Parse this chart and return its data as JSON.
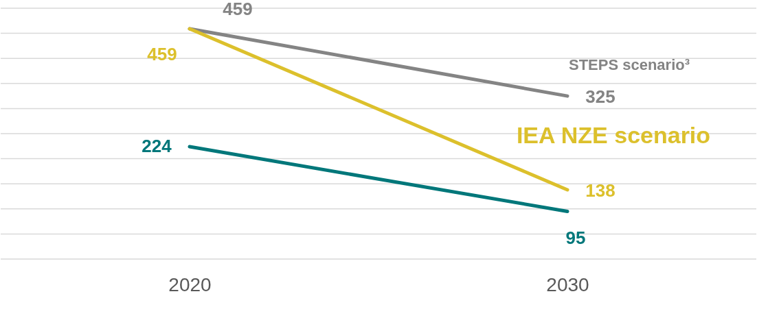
{
  "chart_data": {
    "type": "line",
    "categories": [
      "2020",
      "2030"
    ],
    "series": [
      {
        "name": "STEPS scenario³",
        "color": "#848484",
        "values": [
          459,
          325
        ]
      },
      {
        "name": "IEA NZE scenario",
        "color": "#dcc02c",
        "values": [
          459,
          138
        ]
      },
      {
        "color": "#00777a",
        "values": [
          224,
          95
        ]
      }
    ],
    "ylim": [
      0,
      500
    ],
    "yticks": [
      {
        "value": 0,
        "label": null
      },
      {
        "value": 50,
        "label": null
      },
      {
        "value": 100,
        "label": null
      },
      {
        "value": 150,
        "label": null
      },
      {
        "value": 200,
        "label": null
      },
      {
        "value": 250,
        "label": null
      },
      {
        "value": 300,
        "label": null
      },
      {
        "value": 350,
        "label": null
      },
      {
        "value": 400,
        "label": null
      },
      {
        "value": 450,
        "label": null
      },
      {
        "value": 500,
        "label": null
      }
    ],
    "grid": "y",
    "tick_labels": "x",
    "legend": false,
    "data_labels": true
  }
}
